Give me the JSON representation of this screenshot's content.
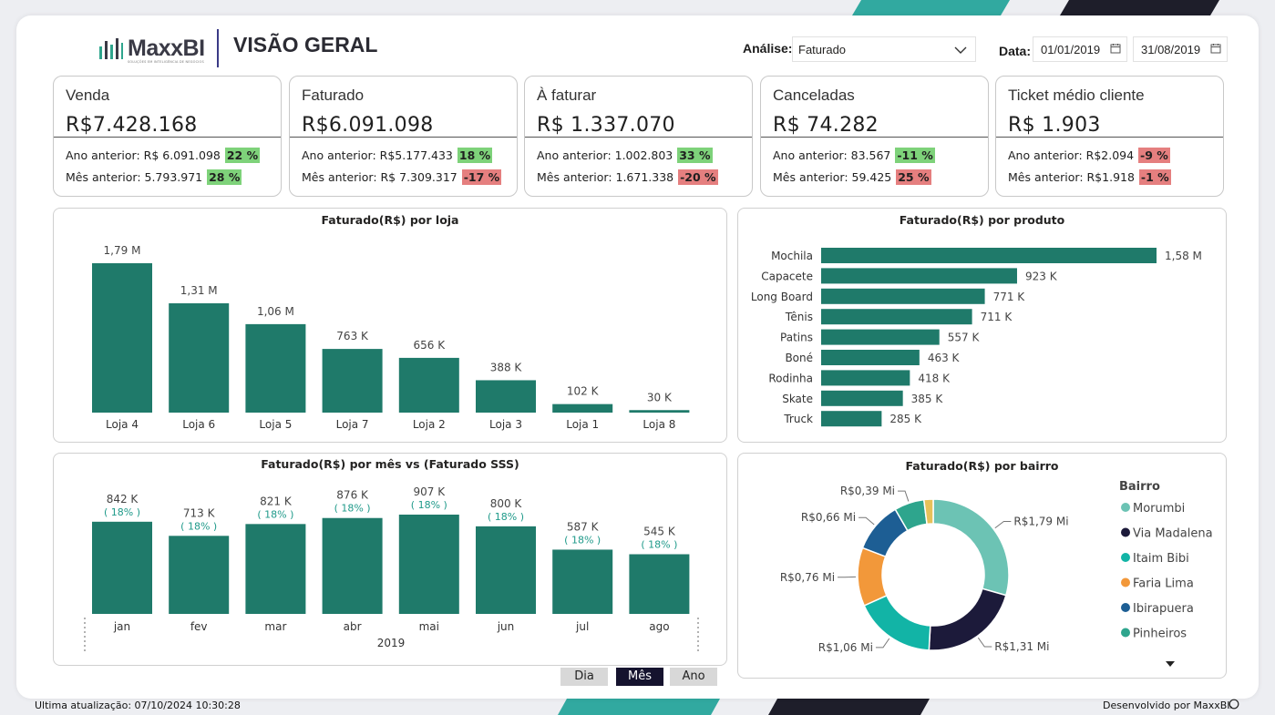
{
  "header": {
    "logo_text": "MaxxBI",
    "logo_subtitle": "SOLUÇÕES EM INTELIGÊNCIA DE NEGÓCIOS",
    "title": "VISÃO GERAL"
  },
  "filters": {
    "analise_label": "Análise:",
    "analise_value": "Faturado",
    "data_label": "Data:",
    "date_start": "01/01/2019",
    "date_end": "31/08/2019"
  },
  "kpis": [
    {
      "title": "Venda",
      "value": "R$7.428.168",
      "prev_year_label": "Ano anterior: R$ 6.091.098",
      "prev_year_pct": "22 %",
      "prev_year_status": "pos",
      "prev_month_label": "Mês anterior: 5.793.971",
      "prev_month_pct": "28 %",
      "prev_month_status": "pos"
    },
    {
      "title": "Faturado",
      "value": "R$6.091.098",
      "prev_year_label": "Ano anterior: R$5.177.433",
      "prev_year_pct": "18 %",
      "prev_year_status": "pos",
      "prev_month_label": "Mês anterior: R$ 7.309.317",
      "prev_month_pct": "-17 %",
      "prev_month_status": "neg"
    },
    {
      "title": "À faturar",
      "value": "R$ 1.337.070",
      "prev_year_label": "Ano anterior: 1.002.803",
      "prev_year_pct": "33 %",
      "prev_year_status": "pos",
      "prev_month_label": "Mês anterior: 1.671.338",
      "prev_month_pct": "-20 %",
      "prev_month_status": "neg"
    },
    {
      "title": "Canceladas",
      "value": "R$ 74.282",
      "prev_year_label": "Ano anterior: 83.567",
      "prev_year_pct": "-11 %",
      "prev_year_status": "pos",
      "prev_month_label": "Mês anterior: 59.425",
      "prev_month_pct": "25 %",
      "prev_month_status": "neg"
    },
    {
      "title": "Ticket médio cliente",
      "value": "R$ 1.903",
      "prev_year_label": "Ano anterior: R$2.094",
      "prev_year_pct": "-9 %",
      "prev_year_status": "neg",
      "prev_month_label": "Mês anterior: R$1.918",
      "prev_month_pct": "-1 %",
      "prev_month_status": "neg"
    }
  ],
  "chart_data": [
    {
      "type": "bar",
      "title": "Faturado(R$) por loja",
      "categories": [
        "Loja 4",
        "Loja 6",
        "Loja 5",
        "Loja 7",
        "Loja 2",
        "Loja 3",
        "Loja 1",
        "Loja 8"
      ],
      "values": [
        1790000,
        1310000,
        1060000,
        763000,
        656000,
        388000,
        102000,
        30000
      ],
      "labels": [
        "1,79 M",
        "1,31 M",
        "1,06 M",
        "763 K",
        "656 K",
        "388 K",
        "102 K",
        "30 K"
      ],
      "color": "#1f7a6a",
      "ylim": [
        0,
        1790000
      ]
    },
    {
      "type": "bar",
      "orientation": "horizontal",
      "title": "Faturado(R$) por produto",
      "categories": [
        "Mochila",
        "Capacete",
        "Long Board",
        "Tênis",
        "Patins",
        "Boné",
        "Rodinha",
        "Skate",
        "Truck"
      ],
      "values": [
        1580000,
        923000,
        771000,
        711000,
        557000,
        463000,
        418000,
        385000,
        285000
      ],
      "labels": [
        "1,58 M",
        "923 K",
        "771 K",
        "711 K",
        "557 K",
        "463 K",
        "418 K",
        "385 K",
        "285 K"
      ],
      "color": "#1f7a6a",
      "xlim": [
        0,
        1580000
      ]
    },
    {
      "type": "bar",
      "title": "Faturado(R$) por mês vs (Faturado SSS)",
      "categories": [
        "jan",
        "fev",
        "mar",
        "abr",
        "mai",
        "jun",
        "jul",
        "ago"
      ],
      "x_group_label": "2019",
      "values": [
        842000,
        713000,
        821000,
        876000,
        907000,
        800000,
        587000,
        545000
      ],
      "labels": [
        "842 K",
        "713 K",
        "821 K",
        "876 K",
        "907 K",
        "800 K",
        "587 K",
        "545 K"
      ],
      "sss_labels": [
        "( 18% )",
        "( 18% )",
        "( 18% )",
        "( 18% )",
        "( 18% )",
        "( 18% )",
        "( 18% )",
        "( 18% )"
      ],
      "color": "#1f7a6a",
      "ylim": [
        0,
        907000
      ]
    },
    {
      "type": "pie",
      "donut": true,
      "title": "Faturado(R$) por bairro",
      "legend_title": "Bairro",
      "legend_position": "right",
      "series": [
        {
          "name": "Morumbi",
          "value": 1.79,
          "label": "R$1,79 Mi",
          "color": "#6cc3b4"
        },
        {
          "name": "Via Madalena",
          "value": 1.31,
          "label": "R$1,31 Mi",
          "color": "#1c1a3a"
        },
        {
          "name": "Itaim Bibi",
          "value": 1.06,
          "label": "R$1,06 Mi",
          "color": "#12b4a6"
        },
        {
          "name": "Faria Lima",
          "value": 0.76,
          "label": "R$0,76 Mi",
          "color": "#f2983a"
        },
        {
          "name": "Ibirapuera",
          "value": 0.66,
          "label": "R$0,66 Mi",
          "color": "#1d5e94"
        },
        {
          "name": "Pinheiros",
          "value": 0.39,
          "label": "R$0,39 Mi",
          "color": "#2ea58d"
        },
        {
          "name": "",
          "value": 0.12,
          "label": "",
          "color": "#e6c15a"
        }
      ]
    }
  ],
  "period_toggle": {
    "dia": "Dia",
    "mes": "Mês",
    "ano": "Ano",
    "selected": "Mês"
  },
  "footer": {
    "last_update": "Ultima atualização: 07/10/2024 10:30:28",
    "credit": "Desenvolvido por MaxxBI"
  },
  "colors": {
    "accent_teal": "#1f7a6a",
    "stripe_teal": "#31a9a0",
    "stripe_dark": "#1e1e2a"
  }
}
